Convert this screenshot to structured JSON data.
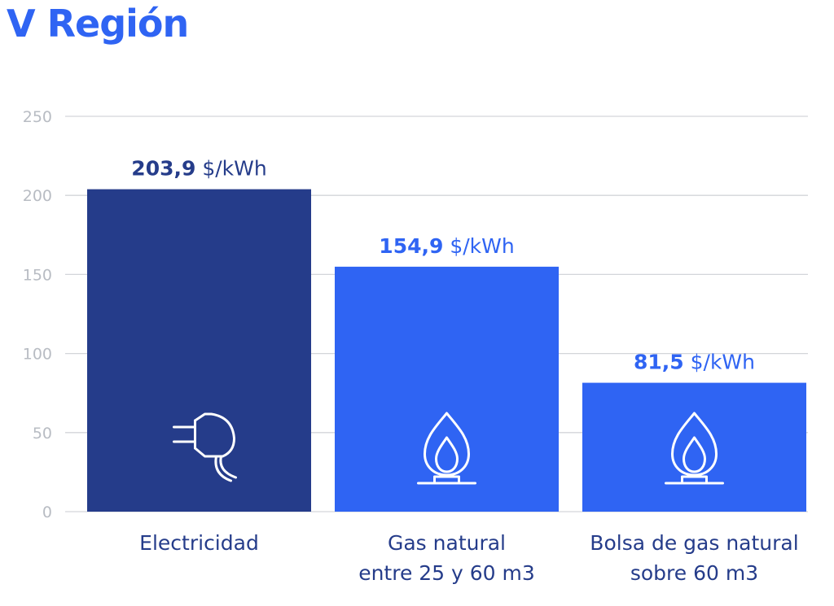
{
  "title": "V Región",
  "colors": {
    "title": "#2f64f3",
    "electricity_bar": "#253c8a",
    "gas_bar": "#2f64f3",
    "grid": "#d3d5d9",
    "tick_label": "#b8bcc3",
    "category_label": "#253c8a",
    "icon_stroke": "#ffffff"
  },
  "chart_data": {
    "type": "bar",
    "title": "V Región",
    "xlabel": "",
    "ylabel": "",
    "ylim": [
      0,
      250
    ],
    "yticks": [
      0,
      50,
      100,
      150,
      200,
      250
    ],
    "grid": true,
    "legend": "none",
    "unit": "$/kWh",
    "bars": [
      {
        "category": [
          "Electricidad"
        ],
        "value": 203.9,
        "value_label": "203,9",
        "color": "#253c8a",
        "label_color": "#253c8a",
        "icon": "plug-icon"
      },
      {
        "category": [
          "Gas natural",
          "entre 25 y 60 m3"
        ],
        "value": 154.9,
        "value_label": "154,9",
        "color": "#2f64f3",
        "label_color": "#2f64f3",
        "icon": "gas-flame-icon"
      },
      {
        "category": [
          "Bolsa de gas natural",
          "sobre 60 m3"
        ],
        "value": 81.5,
        "value_label": "81,5",
        "color": "#2f64f3",
        "label_color": "#2f64f3",
        "icon": "gas-flame-icon"
      }
    ]
  }
}
